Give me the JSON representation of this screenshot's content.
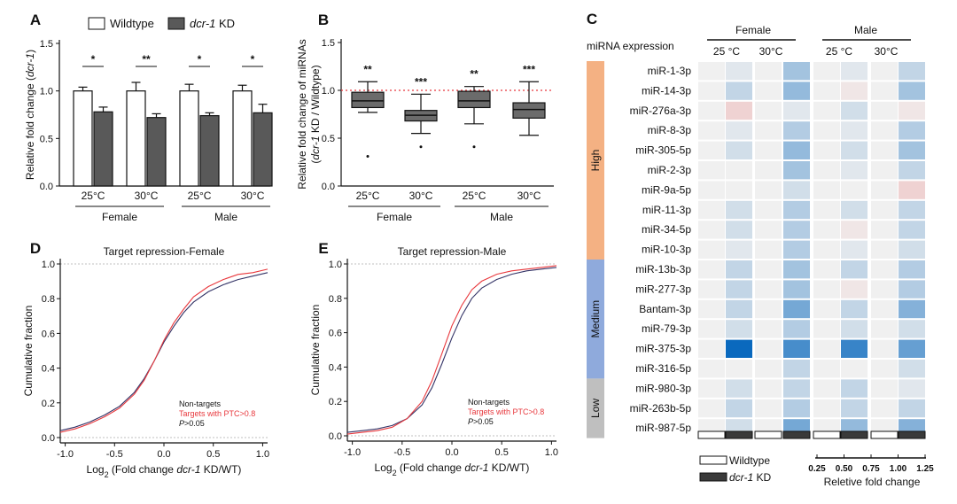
{
  "panels": {
    "A": "A",
    "B": "B",
    "C": "C",
    "D": "D",
    "E": "E"
  },
  "colors": {
    "wildtype": "#ffffff",
    "kd": "#595959",
    "red": "#e8383d",
    "tv": "#333366"
  },
  "chart_data": [
    {
      "id": "A",
      "type": "bar",
      "legend": [
        {
          "label": "Wildtype",
          "italic": false
        },
        {
          "label": "dcr-1",
          "italic": true,
          "suffix": " KD"
        }
      ],
      "ylabel_prefix": "Relative fold change (",
      "ylabel_italic": "dcr-1",
      "ylabel_suffix": ")",
      "ylim": [
        0,
        1.5
      ],
      "yticks": [
        "0.0",
        "0.5",
        "1.0",
        "1.5"
      ],
      "categories": [
        "25°C",
        "30°C",
        "25°C",
        "30°C"
      ],
      "groups": [
        "Female",
        "Male"
      ],
      "series": [
        {
          "name": "Wildtype",
          "values": [
            1.0,
            1.0,
            1.0,
            1.0
          ],
          "errors": [
            0.04,
            0.09,
            0.07,
            0.06
          ]
        },
        {
          "name": "dcr-1 KD",
          "values": [
            0.78,
            0.72,
            0.74,
            0.77
          ],
          "errors": [
            0.05,
            0.04,
            0.03,
            0.09
          ]
        }
      ],
      "significance": [
        "*",
        "**",
        "*",
        "*"
      ]
    },
    {
      "id": "B",
      "type": "box",
      "ylabel_line1": "Relative fold change of miRNAs",
      "ylabel_line2_open": "(",
      "ylabel_line2_italic": "dcr-1",
      "ylabel_line2_rest": " KD / Wildtype)",
      "ylim": [
        0,
        1.5
      ],
      "yticks": [
        "0.0",
        "0.5",
        "1.0",
        "1.5"
      ],
      "reference_line": 1.0,
      "categories": [
        "25°C",
        "30°C",
        "25°C",
        "30°C"
      ],
      "groups": [
        "Female",
        "Male"
      ],
      "boxes": [
        {
          "min": 0.77,
          "q1": 0.82,
          "median": 0.89,
          "q3": 0.98,
          "max": 1.09,
          "outliers": [
            0.31
          ]
        },
        {
          "min": 0.55,
          "q1": 0.68,
          "median": 0.74,
          "q3": 0.79,
          "max": 0.96,
          "outliers": [
            0.41
          ]
        },
        {
          "min": 0.65,
          "q1": 0.82,
          "median": 0.89,
          "q3": 0.99,
          "max": 1.04,
          "outliers": [
            0.41
          ]
        },
        {
          "min": 0.53,
          "q1": 0.71,
          "median": 0.8,
          "q3": 0.87,
          "max": 1.09,
          "outliers": []
        }
      ],
      "significance": [
        "**",
        "***",
        "**",
        "***"
      ]
    },
    {
      "id": "C",
      "type": "heatmap",
      "title": "miRNA expression",
      "groups": [
        "Female",
        "Male"
      ],
      "temperatures": [
        "25 °C",
        "30°C",
        "25 °C",
        "30°C"
      ],
      "rows": [
        "miR-1-3p",
        "miR-14-3p",
        "miR-276a-3p",
        "miR-8-3p",
        "miR-305-5p",
        "miR-2-3p",
        "miR-9a-5p",
        "miR-11-3p",
        "miR-34-5p",
        "miR-10-3p",
        "miR-13b-3p",
        "miR-277-3p",
        "Bantam-3p",
        "miR-79-3p",
        "miR-375-3p",
        "miR-316-5p",
        "miR-980-3p",
        "miR-263b-5p",
        "miR-987-5p"
      ],
      "columns": [
        "Female 25 °C Wildtype",
        "Female 25 °C dcr-1 KD",
        "Female 30°C Wildtype",
        "Female 30°C dcr-1 KD",
        "Male 25 °C Wildtype",
        "Male 25 °C dcr-1 KD",
        "Male 30°C Wildtype",
        "Male 30°C dcr-1 KD"
      ],
      "values": [
        [
          1.0,
          0.95,
          1.0,
          0.75,
          1.0,
          0.95,
          1.0,
          0.85
        ],
        [
          1.0,
          0.85,
          1.0,
          0.7,
          1.0,
          1.05,
          1.0,
          0.75
        ],
        [
          1.0,
          1.15,
          1.0,
          0.95,
          1.0,
          0.9,
          1.0,
          1.05
        ],
        [
          1.0,
          0.95,
          1.0,
          0.8,
          1.0,
          0.95,
          1.0,
          0.8
        ],
        [
          1.0,
          0.9,
          1.0,
          0.7,
          1.0,
          0.9,
          1.0,
          0.75
        ],
        [
          1.0,
          1.0,
          1.0,
          0.75,
          1.0,
          0.95,
          1.0,
          0.85
        ],
        [
          1.0,
          1.0,
          1.0,
          0.9,
          1.0,
          1.0,
          1.0,
          1.15
        ],
        [
          1.0,
          0.9,
          1.0,
          0.8,
          1.0,
          0.9,
          1.0,
          0.85
        ],
        [
          1.0,
          0.9,
          1.0,
          0.8,
          1.0,
          1.05,
          1.0,
          0.85
        ],
        [
          1.0,
          0.95,
          1.0,
          0.8,
          1.0,
          0.95,
          1.0,
          0.9
        ],
        [
          1.0,
          0.85,
          1.0,
          0.75,
          1.0,
          0.85,
          1.0,
          0.8
        ],
        [
          1.0,
          0.85,
          1.0,
          0.75,
          1.0,
          1.05,
          1.0,
          0.8
        ],
        [
          1.0,
          0.85,
          1.0,
          0.6,
          1.0,
          0.85,
          1.0,
          0.65
        ],
        [
          1.0,
          0.9,
          1.0,
          0.8,
          1.0,
          0.9,
          1.0,
          0.9
        ],
        [
          1.0,
          0.25,
          1.0,
          0.45,
          1.0,
          0.4,
          1.0,
          0.55
        ],
        [
          1.0,
          1.0,
          1.0,
          0.85,
          1.0,
          1.0,
          1.0,
          0.9
        ],
        [
          1.0,
          0.9,
          1.0,
          0.85,
          1.0,
          0.85,
          1.0,
          0.95
        ],
        [
          1.0,
          0.85,
          1.0,
          0.8,
          1.0,
          0.85,
          1.0,
          0.85
        ],
        [
          1.0,
          0.9,
          1.0,
          0.6,
          1.0,
          0.7,
          1.0,
          0.65
        ]
      ],
      "categories": [
        {
          "label": "High",
          "rows": 10,
          "color": "#f4b183"
        },
        {
          "label": "Medium",
          "rows": 6,
          "color": "#8faadc"
        },
        {
          "label": "Low",
          "rows": 3,
          "color": "#bfbfbf"
        }
      ],
      "legend": [
        {
          "label": "Wildtype",
          "italic": false
        },
        {
          "label": "dcr-1",
          "italic": true,
          "suffix": " KD"
        }
      ],
      "colorbar_ticks": [
        "0.25",
        "0.50",
        "0.75",
        "1.00",
        "1.25"
      ],
      "colorbar_label": "Reletive fold change"
    },
    {
      "id": "D",
      "type": "line",
      "title": "Target repression-Female",
      "xlabel_prefix": "Log",
      "xlabel_sub": "2",
      "xlabel_mid": " (Fold change ",
      "xlabel_italic": "dcr-1",
      "xlabel_suffix": " KD/WT)",
      "ylabel": "Cumulative fraction",
      "xlim": [
        -1.05,
        1.05
      ],
      "ylim": [
        0,
        1
      ],
      "xticks": [
        "-1.0",
        "-0.5",
        "0.0",
        "0.5",
        "1.0"
      ],
      "yticks": [
        "0.0",
        "0.2",
        "0.4",
        "0.6",
        "0.8",
        "1.0"
      ],
      "series": [
        {
          "name": "Non-targets",
          "x": [
            -1.05,
            -0.9,
            -0.75,
            -0.6,
            -0.45,
            -0.3,
            -0.2,
            -0.1,
            0.0,
            0.1,
            0.2,
            0.3,
            0.45,
            0.6,
            0.75,
            0.9,
            1.05
          ],
          "y": [
            0.04,
            0.06,
            0.09,
            0.13,
            0.18,
            0.26,
            0.34,
            0.44,
            0.55,
            0.64,
            0.72,
            0.78,
            0.84,
            0.88,
            0.91,
            0.93,
            0.95
          ]
        },
        {
          "name": "Targets with PTC>0.8",
          "x": [
            -1.05,
            -0.9,
            -0.75,
            -0.6,
            -0.45,
            -0.3,
            -0.2,
            -0.1,
            0.0,
            0.1,
            0.2,
            0.3,
            0.45,
            0.6,
            0.75,
            0.9,
            1.05
          ],
          "y": [
            0.03,
            0.05,
            0.08,
            0.12,
            0.17,
            0.25,
            0.33,
            0.44,
            0.56,
            0.66,
            0.74,
            0.81,
            0.87,
            0.91,
            0.94,
            0.95,
            0.97
          ]
        }
      ],
      "pvalue_italic": "P",
      "pvalue_rest": ">0.05"
    },
    {
      "id": "E",
      "type": "line",
      "title": "Target repression-Male",
      "xlabel_prefix": "Log",
      "xlabel_sub": "2",
      "xlabel_mid": " (Fold change ",
      "xlabel_italic": "dcr-1",
      "xlabel_suffix": " KD/WT)",
      "ylabel": "Cumulative fraction",
      "xlim": [
        -1.05,
        1.05
      ],
      "ylim": [
        0,
        1
      ],
      "xticks": [
        "-1.0",
        "-0.5",
        "0.0",
        "0.5",
        "1.0"
      ],
      "yticks": [
        "0.0",
        "0.2",
        "0.4",
        "0.6",
        "0.8",
        "1.0"
      ],
      "series": [
        {
          "name": "Non-targets",
          "x": [
            -1.05,
            -0.9,
            -0.75,
            -0.6,
            -0.45,
            -0.3,
            -0.2,
            -0.1,
            0.0,
            0.1,
            0.2,
            0.3,
            0.45,
            0.6,
            0.75,
            0.9,
            1.05
          ],
          "y": [
            0.02,
            0.03,
            0.04,
            0.06,
            0.1,
            0.18,
            0.28,
            0.42,
            0.57,
            0.7,
            0.8,
            0.86,
            0.91,
            0.94,
            0.96,
            0.97,
            0.98
          ]
        },
        {
          "name": "Targets with PTC>0.8",
          "x": [
            -1.05,
            -0.9,
            -0.75,
            -0.6,
            -0.45,
            -0.3,
            -0.2,
            -0.1,
            0.0,
            0.1,
            0.2,
            0.3,
            0.45,
            0.6,
            0.75,
            0.9,
            1.05
          ],
          "y": [
            0.01,
            0.02,
            0.03,
            0.05,
            0.1,
            0.2,
            0.32,
            0.48,
            0.64,
            0.76,
            0.85,
            0.9,
            0.94,
            0.96,
            0.97,
            0.98,
            0.99
          ]
        }
      ],
      "pvalue_italic": "P",
      "pvalue_rest": ">0.05"
    }
  ]
}
